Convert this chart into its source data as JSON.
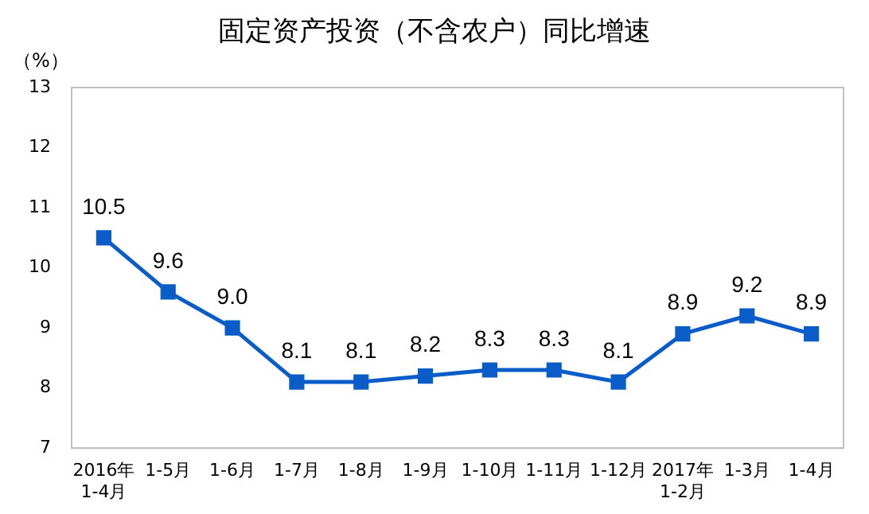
{
  "chart_data": {
    "type": "line",
    "title": "固定资产投资（不含农户）同比增速",
    "ylabel": "（%）",
    "categories": [
      "2016年\n1-4月",
      "1-5月",
      "1-6月",
      "1-7月",
      "1-8月",
      "1-9月",
      "1-10月",
      "1-11月",
      "1-12月",
      "2017年\n1-2月",
      "1-3月",
      "1-4月"
    ],
    "series": [
      {
        "color": "#0a5cc8",
        "values": [
          10.5,
          9.6,
          9.0,
          8.1,
          8.1,
          8.2,
          8.3,
          8.3,
          8.1,
          8.9,
          9.2,
          8.9
        ]
      }
    ],
    "value_labels": [
      "10.5",
      "9.6",
      "9.0",
      "8.1",
      "8.1",
      "8.2",
      "8.3",
      "8.3",
      "8.1",
      "8.9",
      "9.2",
      "8.9"
    ],
    "ylim": [
      7,
      13
    ],
    "yticks": [
      7,
      8,
      9,
      10,
      11,
      12,
      13
    ],
    "grid": false,
    "legend": false,
    "marker": "square",
    "line_style": "solid"
  }
}
